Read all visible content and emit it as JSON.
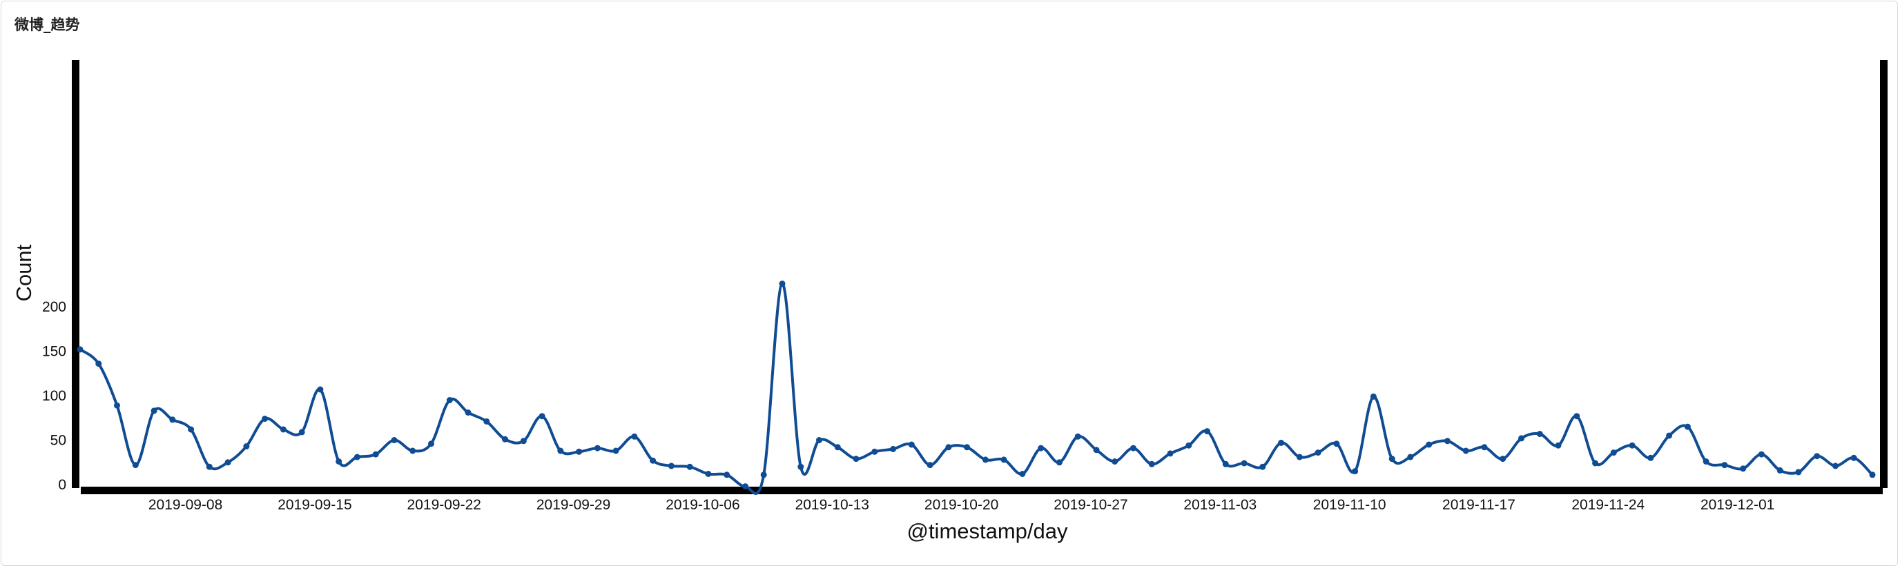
{
  "panel": {
    "title": "微博_趋势"
  },
  "colors": {
    "line": "#0f4c94",
    "axis": "#000000"
  },
  "chart_data": {
    "type": "line",
    "title": "微博_趋势",
    "xlabel": "@timestamp/day",
    "ylabel": "Count",
    "x_start": "2019-09-02",
    "x_interval": "1 day",
    "ylim": [
      0,
      240
    ],
    "grid": false,
    "y_ticks": [
      0,
      50,
      100,
      150,
      200
    ],
    "x_tick_labels": [
      "2019-09-08",
      "2019-09-15",
      "2019-09-22",
      "2019-09-29",
      "2019-10-06",
      "2019-10-13",
      "2019-10-20",
      "2019-10-27",
      "2019-11-03",
      "2019-11-10",
      "2019-11-17",
      "2019-11-24",
      "2019-12-01"
    ],
    "series": [
      {
        "values": [
          152,
          136,
          89,
          22,
          83,
          73,
          62,
          20,
          25,
          43,
          74,
          62,
          59,
          107,
          26,
          31,
          34,
          50,
          38,
          46,
          95,
          81,
          71,
          51,
          49,
          77,
          38,
          37,
          41,
          38,
          54,
          27,
          21,
          20,
          12,
          11,
          -2,
          11,
          226,
          20,
          50,
          42,
          29,
          37,
          40,
          45,
          22,
          42,
          42,
          28,
          28,
          12,
          41,
          25,
          54,
          39,
          26,
          41,
          23,
          35,
          44,
          60,
          23,
          24,
          20,
          47,
          31,
          36,
          46,
          15,
          99,
          29,
          31,
          45,
          49,
          38,
          42,
          29,
          52,
          57,
          44,
          77,
          24,
          36,
          44,
          30,
          55,
          65,
          26,
          22,
          18,
          34,
          16,
          14,
          32,
          21,
          30,
          11
        ]
      }
    ]
  }
}
